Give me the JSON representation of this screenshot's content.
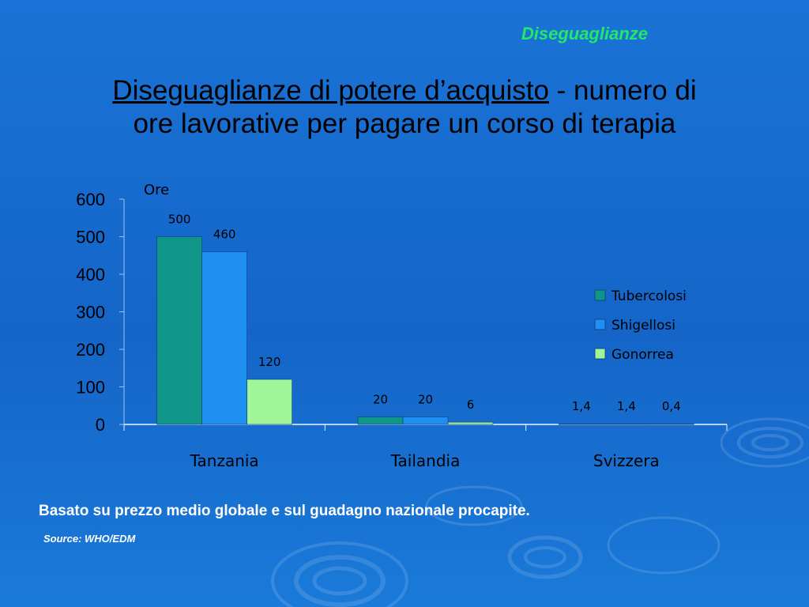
{
  "header_tag": "Diseguaglianze",
  "title": {
    "underlined": "Diseguaglianze di potere d’acquisto",
    "rest_line1": " - numero di",
    "line2": "ore lavorative per pagare un corso di terapia"
  },
  "note": "Basato su prezzo medio globale e sul guadagno nazionale procapite.",
  "source": "Source: WHO/EDM",
  "colors": {
    "tubercolosi": "#0f9688",
    "shigellosi": "#1f8ff2",
    "gonorrea": "#9ff598"
  },
  "chart_data": {
    "type": "bar",
    "ylabel": "Ore",
    "ylim": [
      0,
      600
    ],
    "yticks": [
      "0",
      "100",
      "200",
      "300",
      "400",
      "500",
      "600"
    ],
    "categories": [
      "Tanzania",
      "Tailandia",
      "Svizzera"
    ],
    "legend_position": "right",
    "series": [
      {
        "name": "Tubercolosi",
        "values": [
          500,
          20,
          1.4
        ],
        "labels": [
          "500",
          "20",
          "1,4"
        ]
      },
      {
        "name": "Shigellosi",
        "values": [
          460,
          20,
          1.4
        ],
        "labels": [
          "460",
          "20",
          "1,4"
        ]
      },
      {
        "name": "Gonorrea",
        "values": [
          120,
          6,
          0.4
        ],
        "labels": [
          "120",
          "6",
          "0,4"
        ]
      }
    ]
  }
}
